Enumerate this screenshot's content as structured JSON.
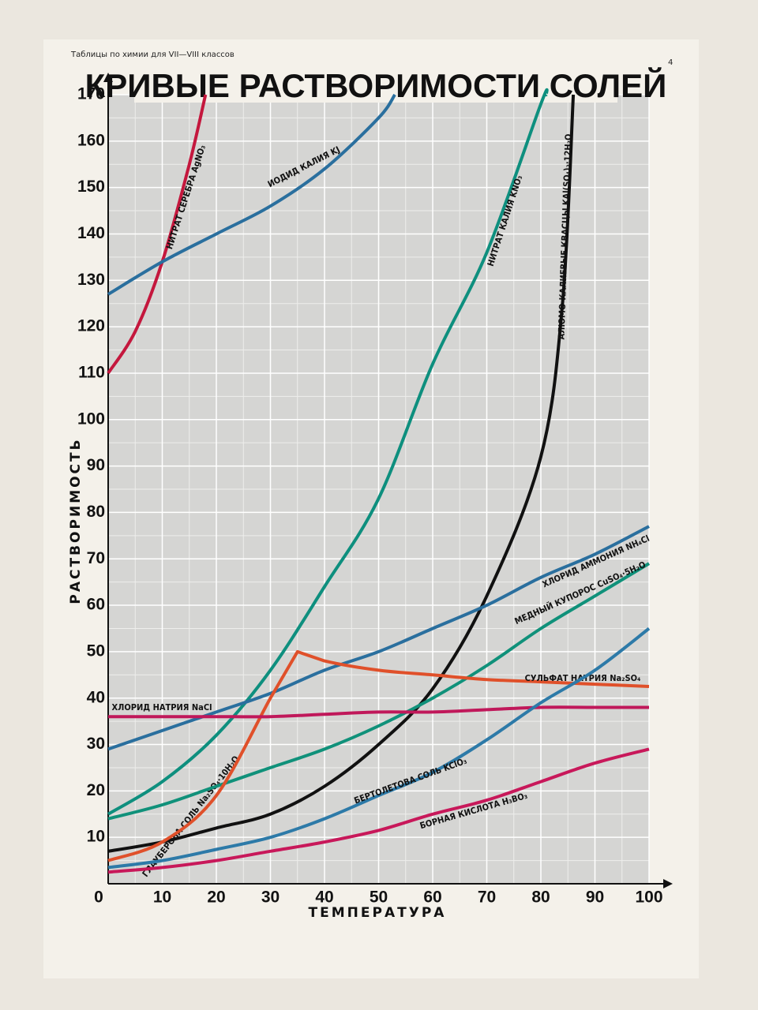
{
  "header": {
    "series_title": "Таблицы по химии для VII—VIII классов",
    "page_number": "4"
  },
  "chart_data": {
    "type": "line",
    "title": "КРИВЫЕ РАСТВОРИМОСТИ СОЛЕЙ",
    "x_label": "ТЕМПЕРАТУРА",
    "y_label": "РАСТВОРИМОСТЬ",
    "xlim": [
      0,
      100
    ],
    "ylim": [
      0,
      170
    ],
    "xticks": [
      0,
      10,
      20,
      30,
      40,
      50,
      60,
      70,
      80,
      90,
      100
    ],
    "yticks": [
      10,
      20,
      30,
      40,
      50,
      60,
      70,
      80,
      90,
      100,
      110,
      120,
      130,
      140,
      150,
      160,
      170
    ],
    "grid": true,
    "annotations": [
      "ГЛАУБЕРОВА СОЛЬ Na₂SO₄·10H₂O"
    ],
    "series": [
      {
        "name": "НИТРАТ СЕРЕБРА AgNO₃",
        "color": "#c4173d",
        "x": [
          0,
          5,
          10,
          15,
          18
        ],
        "values": [
          110,
          119,
          134,
          155,
          170
        ]
      },
      {
        "name": "ИОДИД КАЛИЯ KJ",
        "color": "#2a6f9e",
        "x": [
          0,
          10,
          20,
          30,
          40,
          50,
          53
        ],
        "values": [
          127,
          134,
          140,
          146,
          154,
          165,
          170
        ]
      },
      {
        "name": "НИТРАТ КАЛИЯ KNO₃",
        "color": "#0e8f7e",
        "x": [
          0,
          10,
          20,
          30,
          40,
          50,
          60,
          70,
          80,
          81
        ],
        "values": [
          15,
          22,
          32,
          46,
          64,
          83,
          112,
          136,
          168,
          170
        ]
      },
      {
        "name": "АЛЮМО-КАЛИЕВЫЕ КВАСЦЫ KAl(SO₄)₂·12H₂O",
        "color": "#111111",
        "x": [
          0,
          10,
          20,
          30,
          40,
          50,
          60,
          70,
          80,
          84,
          86
        ],
        "values": [
          7,
          9,
          12,
          15,
          21,
          30,
          42,
          62,
          92,
          125,
          170
        ]
      },
      {
        "name": "ХЛОРИД АММОНИЯ NH₄Cl",
        "color": "#2a6f9e",
        "x": [
          0,
          10,
          20,
          30,
          40,
          50,
          60,
          70,
          80,
          90,
          100
        ],
        "values": [
          29,
          33,
          37,
          41,
          46,
          50,
          55,
          60,
          66,
          71,
          77
        ]
      },
      {
        "name": "МЕДНЫЙ КУПОРОС CuSO₄·5H₂O",
        "color": "#10917a",
        "x": [
          0,
          10,
          20,
          30,
          40,
          50,
          60,
          70,
          80,
          90,
          100
        ],
        "values": [
          14,
          17,
          21,
          25,
          29,
          34,
          40,
          47,
          55,
          62,
          69
        ]
      },
      {
        "name": "СУЛЬФАТ НАТРИЯ Na₂SO₄",
        "color": "#e0502a",
        "x": [
          0,
          10,
          20,
          30,
          35,
          40,
          50,
          60,
          70,
          80,
          90,
          100
        ],
        "values": [
          5,
          9,
          19,
          40,
          50,
          48,
          46,
          45,
          44,
          43.5,
          43,
          42.5
        ]
      },
      {
        "name": "ХЛОРИД НАТРИЯ NaCl",
        "color": "#c0185a",
        "x": [
          0,
          10,
          20,
          30,
          40,
          50,
          60,
          70,
          80,
          90,
          100
        ],
        "values": [
          36,
          36,
          36,
          36,
          36.5,
          37,
          37,
          37.5,
          38,
          38,
          38
        ]
      },
      {
        "name": "БЕРТОЛЕТОВА СОЛЬ KClO₃",
        "color": "#2d7aa8",
        "x": [
          0,
          10,
          20,
          30,
          40,
          50,
          60,
          70,
          80,
          90,
          100
        ],
        "values": [
          3.5,
          5,
          7.4,
          10,
          14,
          19,
          24,
          31,
          39,
          46,
          55
        ]
      },
      {
        "name": "БОРНАЯ КИСЛОТА H₃BO₃",
        "color": "#c8185a",
        "x": [
          0,
          10,
          20,
          30,
          40,
          50,
          60,
          70,
          80,
          90,
          100
        ],
        "values": [
          2.5,
          3.5,
          5,
          7,
          9,
          11.5,
          15,
          18,
          22,
          26,
          29
        ]
      }
    ]
  }
}
